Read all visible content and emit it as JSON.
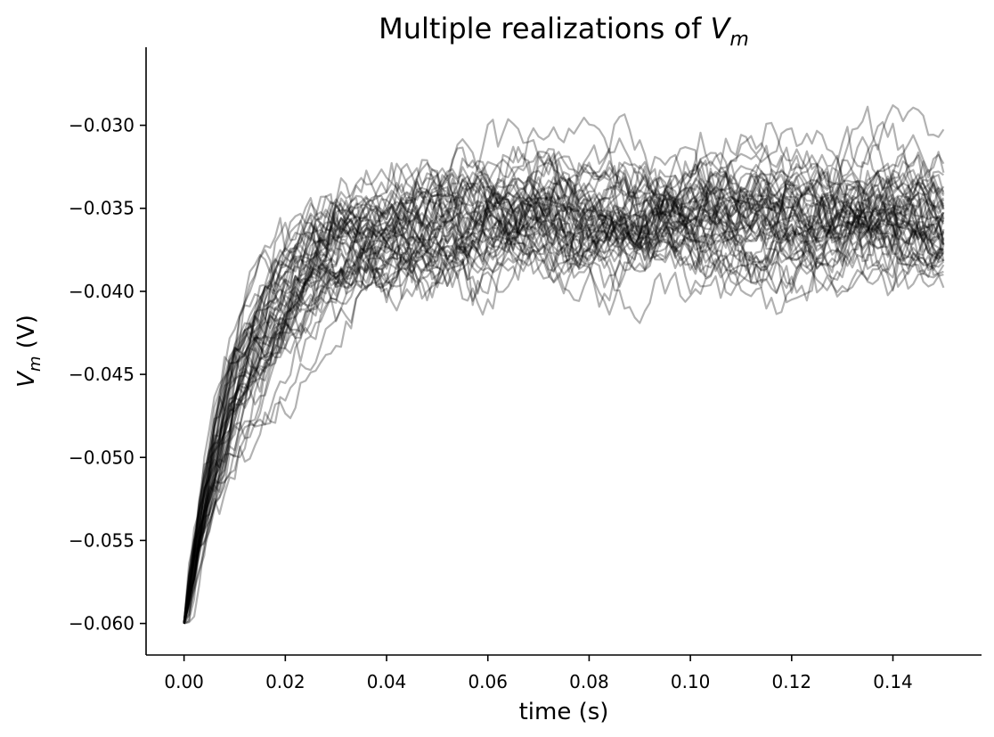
{
  "chart_data": {
    "type": "line",
    "title_prefix": "Multiple realizations of ",
    "title_var": "V",
    "title_sub": "m",
    "ylabel_var": "V",
    "ylabel_sub": "m",
    "ylabel_unit": " (V)",
    "xlabel": "time (s)",
    "xlim": [
      -0.0075,
      0.1575
    ],
    "ylim": [
      -0.0619,
      -0.0253
    ],
    "xticks": [
      0.0,
      0.02,
      0.04,
      0.06,
      0.08,
      0.1,
      0.12,
      0.14
    ],
    "xtick_labels": [
      "0.00",
      "0.02",
      "0.04",
      "0.06",
      "0.08",
      "0.10",
      "0.12",
      "0.14"
    ],
    "yticks": [
      -0.06,
      -0.055,
      -0.05,
      -0.045,
      -0.04,
      -0.035,
      -0.03
    ],
    "ytick_labels": [
      "−0.060",
      "−0.055",
      "−0.050",
      "−0.045",
      "−0.040",
      "−0.035",
      "−0.030"
    ],
    "grid": false,
    "legend": "none",
    "line_color": "#000000",
    "line_alpha": 0.3,
    "realizations": 50,
    "x_start": 0.0,
    "x_end": 0.15,
    "x_step": 0.001,
    "v_initial": -0.06,
    "v_mean_steady": -0.0355,
    "tau": 0.012,
    "noise_std": 0.0007
  }
}
